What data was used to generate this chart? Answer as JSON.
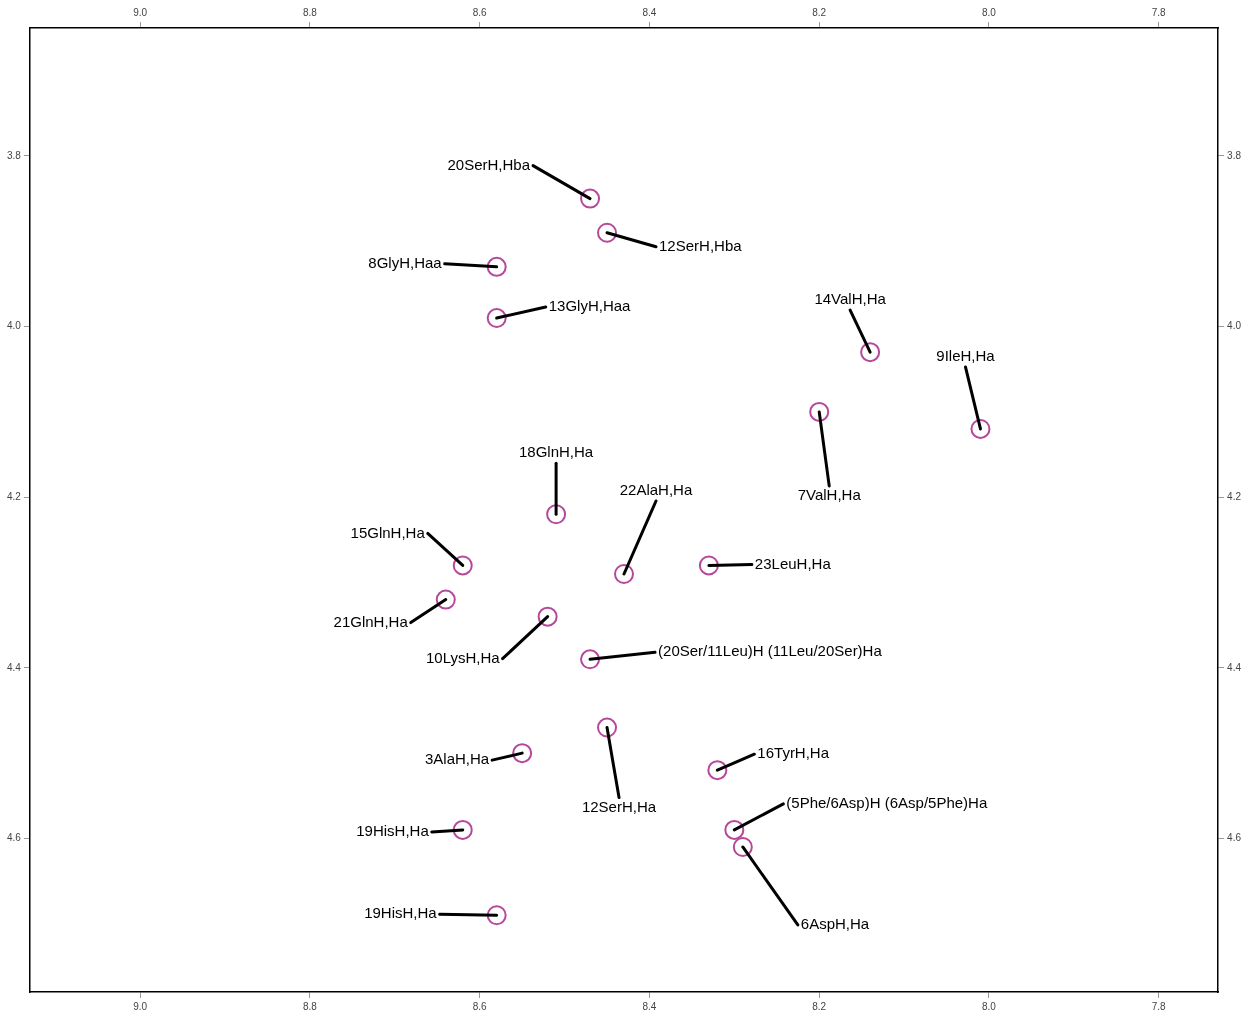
{
  "chart_data": {
    "type": "scatter",
    "marker": "circle",
    "grid": false,
    "legend": false,
    "xlim": [
      9.13,
      7.73
    ],
    "ylim": [
      4.78,
      3.65
    ],
    "x2lim": [
      9.13,
      7.73
    ],
    "y2lim": [
      4.78,
      3.65
    ],
    "xticks": [
      {
        "value": 9,
        "label": "9.0"
      },
      8.8,
      8.6,
      8.4,
      8.2,
      {
        "value": 8,
        "label": "8.0"
      },
      7.8
    ],
    "x2ticks": [
      {
        "value": 9,
        "label": "9.0"
      },
      8.8,
      8.6,
      8.4,
      8.2,
      {
        "value": 8,
        "label": "8.0"
      },
      7.8
    ],
    "yticks": [
      3.8,
      {
        "value": 4,
        "label": "4.0"
      },
      4.2,
      4.4,
      4.6
    ],
    "y2ticks": [
      3.8,
      {
        "value": 4,
        "label": "4.0"
      },
      4.2,
      4.4,
      4.6
    ],
    "series": [
      {
        "color": "#b5489a",
        "x": [
          8.47,
          8.45,
          8.58,
          8.58,
          8.14,
          8.01,
          8.2,
          8.51,
          8.43,
          8.33,
          8.62,
          8.64,
          8.52,
          8.47,
          8.45,
          8.55,
          8.32,
          8.3,
          8.29,
          8.62,
          8.58
        ],
        "values": [
          3.85,
          3.89,
          3.93,
          3.99,
          4.03,
          4.12,
          4.1,
          4.22,
          4.29,
          4.28,
          4.28,
          4.32,
          4.34,
          4.39,
          4.47,
          4.5,
          4.52,
          4.59,
          4.61,
          4.59,
          4.69
        ]
      }
    ],
    "annotations": [
      {
        "text": "20SerH,Hba",
        "x": 8.47,
        "y": 3.85
      },
      {
        "text": "12SerH,Hba",
        "x": 8.45,
        "y": 3.89
      },
      {
        "text": "8GlyH,Haa",
        "x": 8.58,
        "y": 3.93
      },
      {
        "text": "13GlyH,Haa",
        "x": 8.58,
        "y": 3.99
      },
      {
        "text": "14ValH,Ha",
        "x": 8.14,
        "y": 4.03
      },
      {
        "text": "9IleH,Ha",
        "x": 8.01,
        "y": 4.12
      },
      {
        "text": "7ValH,Ha",
        "x": 8.2,
        "y": 4.1
      },
      {
        "text": "18GlnH,Ha",
        "x": 8.51,
        "y": 4.22
      },
      {
        "text": "22AlaH,Ha",
        "x": 8.43,
        "y": 4.29
      },
      {
        "text": "23LeuH,Ha",
        "x": 8.33,
        "y": 4.28
      },
      {
        "text": "15GlnH,Ha",
        "x": 8.62,
        "y": 4.28
      },
      {
        "text": "21GlnH,Ha",
        "x": 8.64,
        "y": 4.32
      },
      {
        "text": "10LysH,Ha",
        "x": 8.52,
        "y": 4.34
      },
      {
        "text": "(20Ser/11Leu)H (11Leu/20Ser)Ha",
        "x": 8.47,
        "y": 4.39
      },
      {
        "text": "12SerH,Ha",
        "x": 8.45,
        "y": 4.47
      },
      {
        "text": "3AlaH,Ha",
        "x": 8.55,
        "y": 4.5
      },
      {
        "text": "16TyrH,Ha",
        "x": 8.32,
        "y": 4.52
      },
      {
        "text": "(5Phe/6Asp)H (6Asp/5Phe)Ha",
        "x": 8.3,
        "y": 4.59
      },
      {
        "text": "6AspH,Ha",
        "x": 8.29,
        "y": 4.61
      },
      {
        "text": "19HisH,Ha",
        "x": 8.62,
        "y": 4.59
      },
      {
        "text": "19HisH,Ha",
        "x": 8.58,
        "y": 4.69
      }
    ]
  }
}
